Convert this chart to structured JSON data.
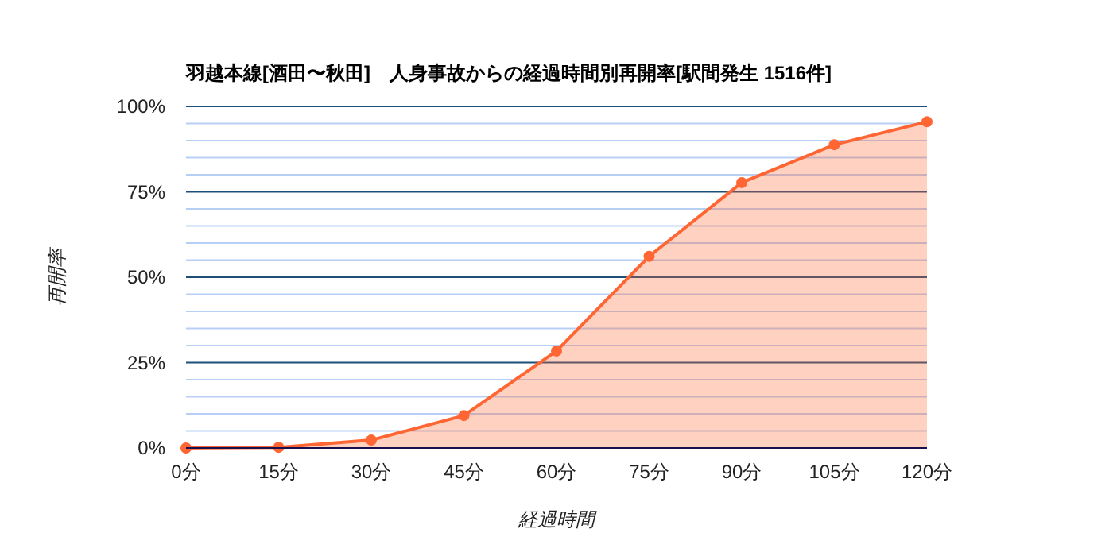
{
  "chart_data": {
    "type": "area",
    "title": "羽越本線[酒田〜秋田]　人身事故からの経過時間別再開率[駅間発生 1516件]",
    "xlabel": "経過時間",
    "ylabel": "再開率",
    "categories": [
      "0分",
      "15分",
      "30分",
      "45分",
      "60分",
      "75分",
      "90分",
      "105分",
      "120分"
    ],
    "series": [
      {
        "color": "#ff6633",
        "values": [
          0,
          0.2,
          2.3,
          9.5,
          28.4,
          56.1,
          77.7,
          88.8,
          95.5
        ]
      }
    ],
    "ylim": [
      0,
      100
    ],
    "yticks": [
      {
        "value": 0,
        "label": "0%"
      },
      {
        "value": 5,
        "label": null
      },
      {
        "value": 10,
        "label": null
      },
      {
        "value": 15,
        "label": null
      },
      {
        "value": 20,
        "label": null
      },
      {
        "value": 25,
        "label": "25%"
      },
      {
        "value": 30,
        "label": null
      },
      {
        "value": 35,
        "label": null
      },
      {
        "value": 40,
        "label": null
      },
      {
        "value": 45,
        "label": null
      },
      {
        "value": 50,
        "label": "50%"
      },
      {
        "value": 55,
        "label": null
      },
      {
        "value": 60,
        "label": null
      },
      {
        "value": 65,
        "label": null
      },
      {
        "value": 70,
        "label": null
      },
      {
        "value": 75,
        "label": "75%"
      },
      {
        "value": 80,
        "label": null
      },
      {
        "value": 85,
        "label": null
      },
      {
        "value": 90,
        "label": null
      },
      {
        "value": 95,
        "label": null
      },
      {
        "value": 100,
        "label": "100%"
      }
    ],
    "grid": "y",
    "marker": "circle",
    "line_style": "solid"
  }
}
